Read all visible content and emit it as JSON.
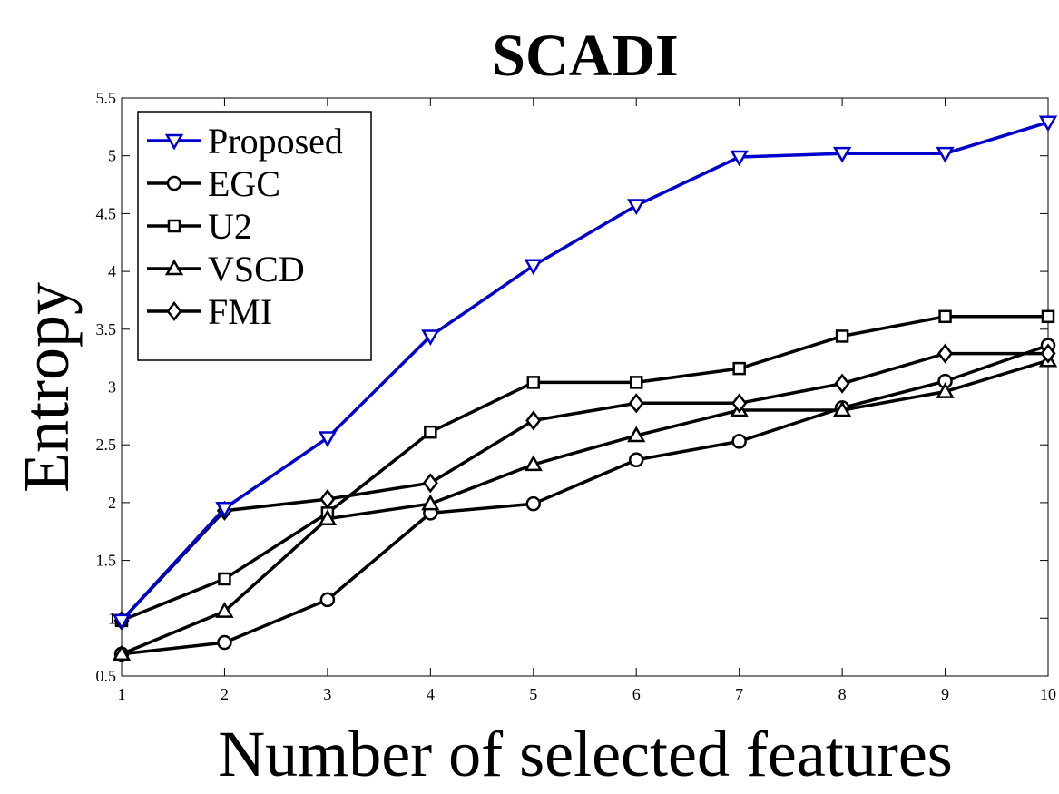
{
  "chart_data": {
    "type": "line",
    "title": "SCADI",
    "xlabel": "Number of selected features",
    "ylabel": "Entropy",
    "x": [
      1,
      2,
      3,
      4,
      5,
      6,
      7,
      8,
      9,
      10
    ],
    "xlim": [
      1,
      10
    ],
    "ylim": [
      0.5,
      5.5
    ],
    "xticks": [
      "1",
      "2",
      "3",
      "4",
      "5",
      "6",
      "7",
      "8",
      "9",
      "10"
    ],
    "yticks": [
      "0.5",
      "1",
      "1.5",
      "2",
      "2.5",
      "3",
      "3.5",
      "4",
      "4.5",
      "5",
      "5.5"
    ],
    "grid": false,
    "legend_position": "top-left",
    "series": [
      {
        "name": "Proposed",
        "color": "#0000cc",
        "marker": "triangle-down",
        "values": [
          0.98,
          1.95,
          2.56,
          3.44,
          4.05,
          4.57,
          4.99,
          5.02,
          5.02,
          5.29
        ]
      },
      {
        "name": "EGC",
        "color": "#000000",
        "marker": "circle",
        "values": [
          0.69,
          0.79,
          1.16,
          1.91,
          1.99,
          2.37,
          2.53,
          2.82,
          3.05,
          3.36
        ]
      },
      {
        "name": "U2",
        "color": "#000000",
        "marker": "square",
        "values": [
          0.98,
          1.34,
          1.91,
          2.61,
          3.04,
          3.04,
          3.16,
          3.44,
          3.61,
          3.61
        ]
      },
      {
        "name": "VSCD",
        "color": "#000000",
        "marker": "triangle-up",
        "values": [
          0.69,
          1.06,
          1.86,
          1.99,
          2.33,
          2.58,
          2.8,
          2.8,
          2.96,
          3.23
        ]
      },
      {
        "name": "FMI",
        "color": "#000000",
        "marker": "diamond",
        "values": [
          0.98,
          1.93,
          2.03,
          2.17,
          2.71,
          2.86,
          2.86,
          3.03,
          3.29,
          3.29
        ]
      }
    ]
  }
}
